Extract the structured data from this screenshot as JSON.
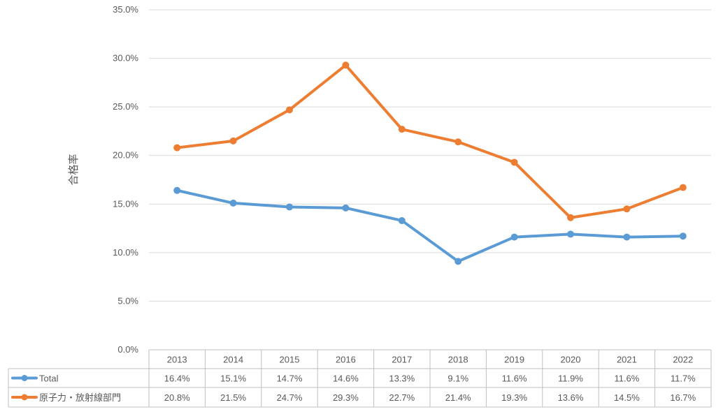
{
  "chart_data": {
    "type": "line",
    "ylabel": "合格率",
    "ylim": [
      0,
      35
    ],
    "yticks": [
      "0.0%",
      "5.0%",
      "10.0%",
      "15.0%",
      "20.0%",
      "25.0%",
      "30.0%",
      "35.0%"
    ],
    "grid": true,
    "legend_placement": "data-table-left",
    "categories": [
      "2013",
      "2014",
      "2015",
      "2016",
      "2017",
      "2018",
      "2019",
      "2020",
      "2021",
      "2022"
    ],
    "series": [
      {
        "name": "Total",
        "color": "#5B9BD5",
        "values": [
          16.4,
          15.1,
          14.7,
          14.6,
          13.3,
          9.1,
          11.6,
          11.9,
          11.6,
          11.7
        ],
        "labels": [
          "16.4%",
          "15.1%",
          "14.7%",
          "14.6%",
          "13.3%",
          "9.1%",
          "11.6%",
          "11.9%",
          "11.6%",
          "11.7%"
        ]
      },
      {
        "name": "原子力・放射線部門",
        "color": "#ED7D31",
        "values": [
          20.8,
          21.5,
          24.7,
          29.3,
          22.7,
          21.4,
          19.3,
          13.6,
          14.5,
          16.7
        ],
        "labels": [
          "20.8%",
          "21.5%",
          "24.7%",
          "29.3%",
          "22.7%",
          "21.4%",
          "19.3%",
          "13.6%",
          "14.5%",
          "16.7%"
        ]
      }
    ]
  }
}
